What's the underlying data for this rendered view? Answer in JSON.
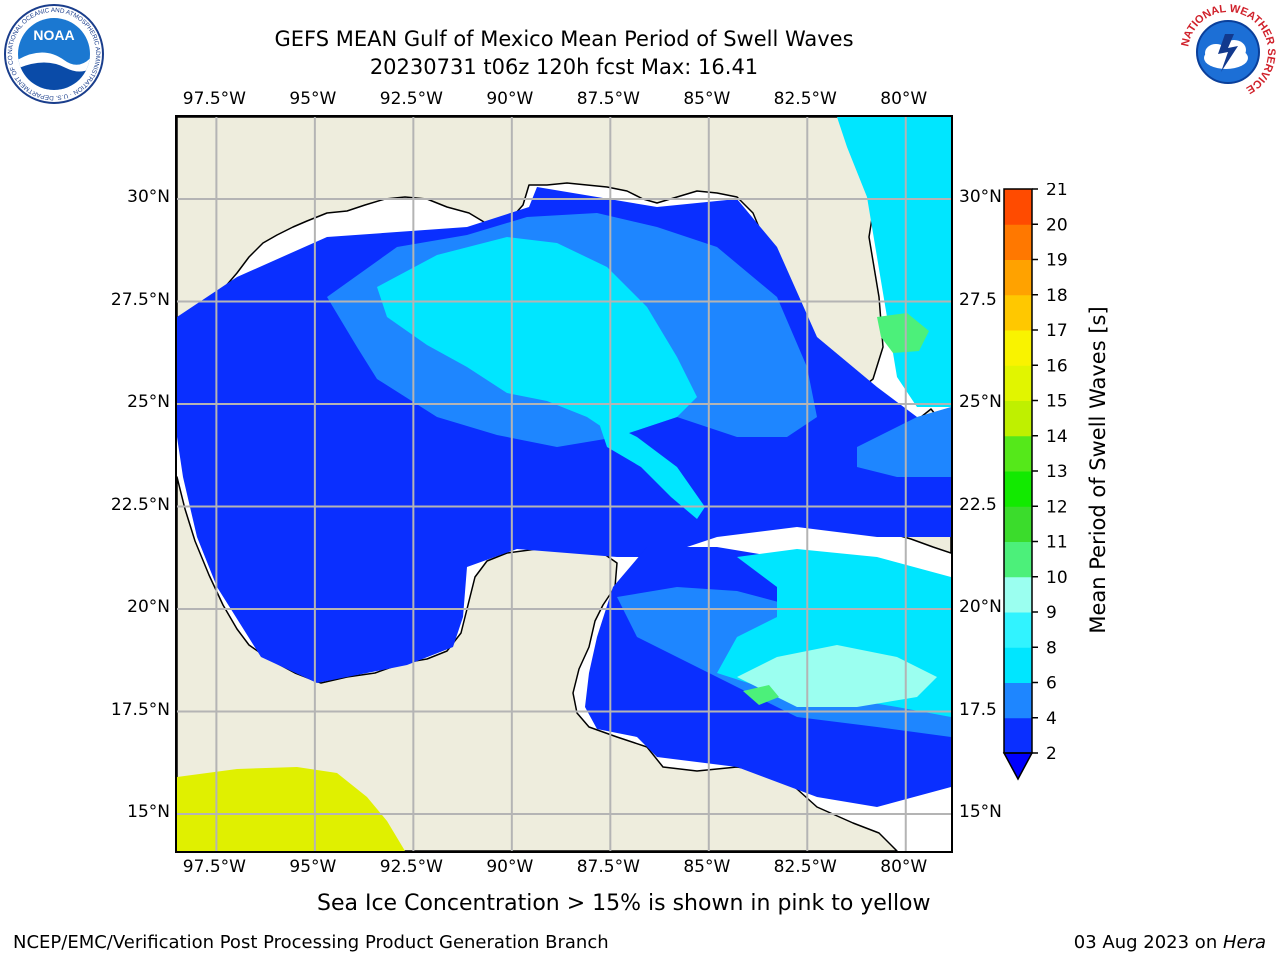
{
  "title": {
    "line1": "GEFS MEAN Gulf of Mexico Mean Period of Swell Waves",
    "line2": "20230731 t06z 120h fcst   Max: 16.41"
  },
  "axes": {
    "lon_labels": [
      "97.5°W",
      "95°W",
      "92.5°W",
      "90°W",
      "87.5°W",
      "85°W",
      "82.5°W",
      "80°W"
    ],
    "lat_labels_left": [
      "30°N",
      "27.5°N",
      "25°N",
      "22.5°N",
      "20°N",
      "17.5°N",
      "15°N"
    ],
    "lat_labels_right": [
      "30°N",
      "27.5",
      "25°N",
      "22.5",
      "20°N",
      "17.5",
      "15°N"
    ]
  },
  "colorbar": {
    "label": "Mean Period of Swell Waves [s]",
    "levels": [
      "2",
      "4",
      "6",
      "8",
      "9",
      "10",
      "11",
      "12",
      "13",
      "14",
      "15",
      "16",
      "17",
      "18",
      "19",
      "20",
      "21"
    ],
    "colors": [
      "#0a2fff",
      "#1e86ff",
      "#00e6ff",
      "#31f3ff",
      "#9bfff0",
      "#4cf07a",
      "#3bdc2c",
      "#12ea00",
      "#55e81a",
      "#bff000",
      "#e1f500",
      "#f9f300",
      "#ffc800",
      "#ffa200",
      "#ff7800",
      "#ff4b00",
      "#ff1500",
      "#ff0000"
    ],
    "under_color": "#0000ff"
  },
  "map": {
    "extent_lon": [
      -98.5,
      -78.75
    ],
    "extent_lat": [
      14,
      32
    ]
  },
  "legend_note": "Sea Ice Concentration > 15% is shown in pink to yellow",
  "footer": {
    "left": "NCEP/EMC/Verification Post Processing Product Generation Branch",
    "date": "03 Aug 2023 on ",
    "host": "Hera"
  },
  "logos": {
    "noaa_text": "NOAA",
    "noaa_ring": "NATIONAL OCEANIC AND ATMOSPHERIC ADMINISTRATION · U.S. DEPARTMENT OF COMMERCE",
    "nws_ring": "NATIONAL WEATHER SERVICE"
  }
}
